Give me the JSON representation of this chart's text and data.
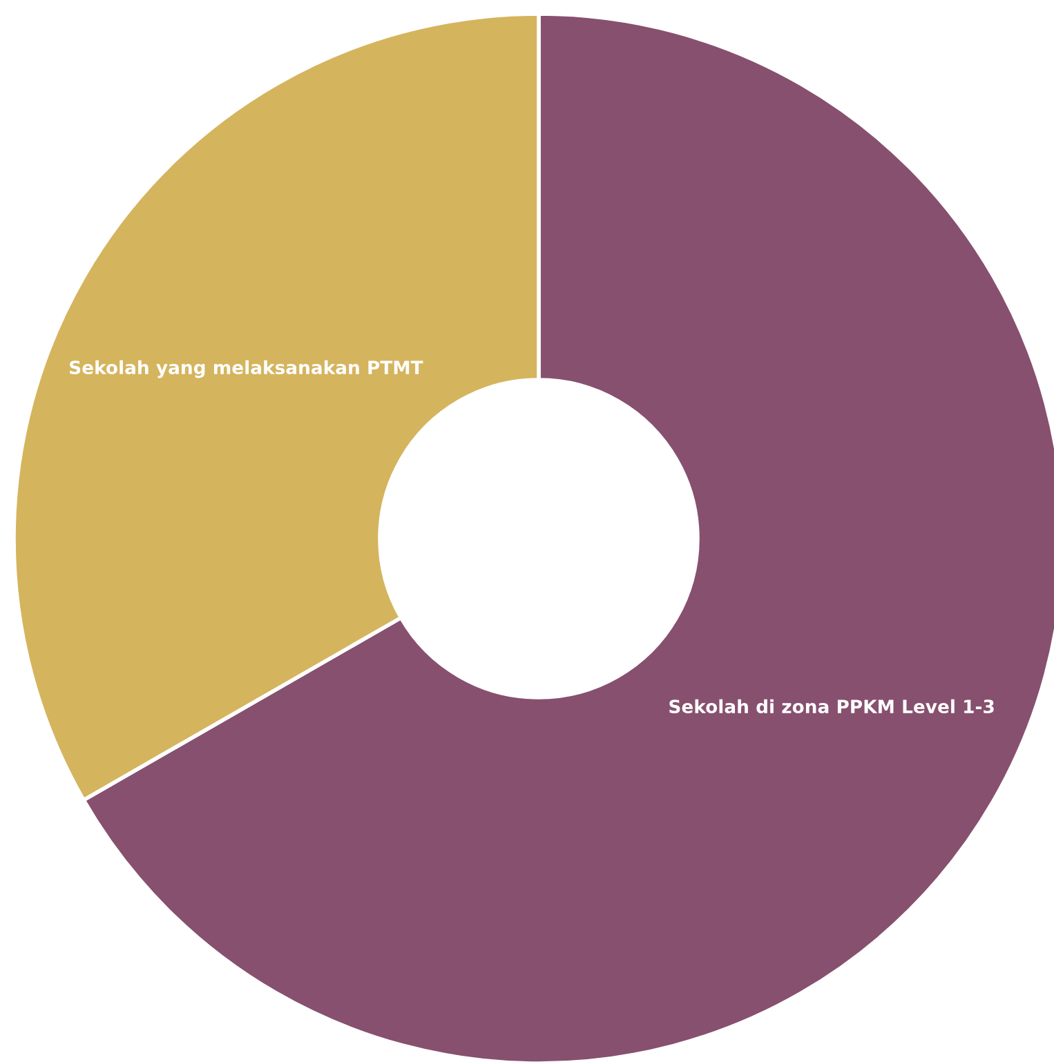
{
  "chart_data": {
    "type": "donut",
    "categories": [
      "Sekolah di zona PPKM Level 1-3",
      "Sekolah yang melaksanakan PTMT"
    ],
    "values": [
      66.7,
      33.3
    ],
    "colors": [
      "#87506f",
      "#d5b45e"
    ]
  }
}
